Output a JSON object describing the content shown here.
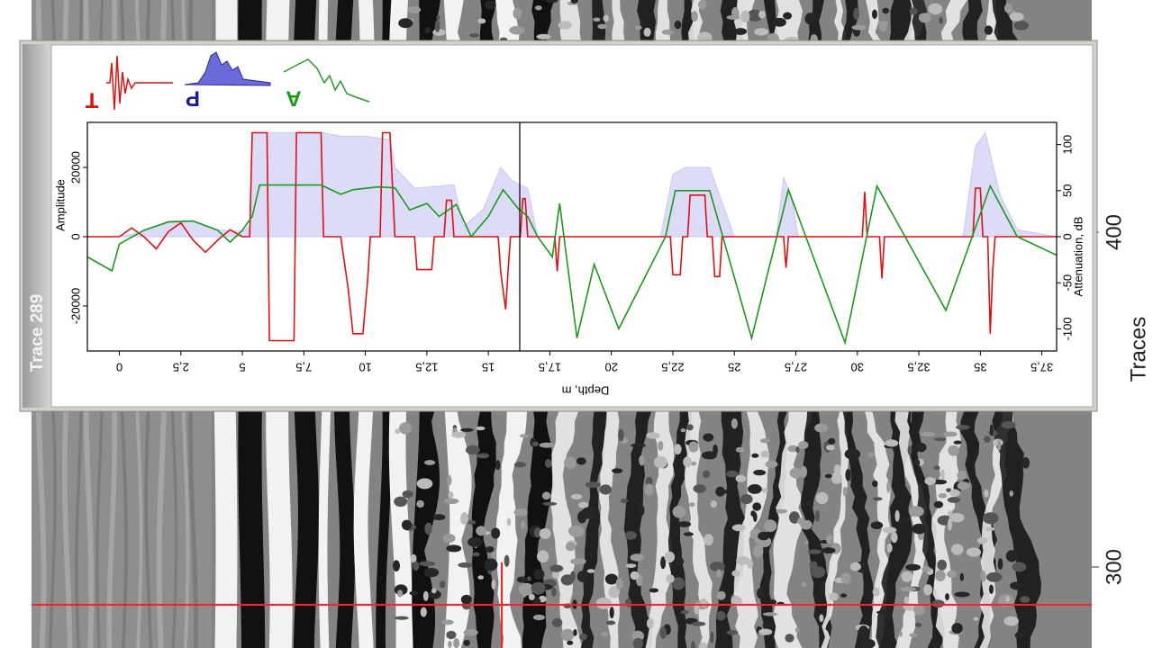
{
  "window": {
    "title": "Trace 289"
  },
  "radargram": {
    "axis_title": "Traces",
    "ticks": [
      300,
      400
    ]
  },
  "chart_data": {
    "type": "line",
    "xlabel": "Depth, m",
    "ylabel": "Amplitude",
    "y2label": "Attenuation, dB",
    "xlim": [
      -1.3,
      38.1
    ],
    "xticks": [
      {
        "value": 0,
        "label": "0"
      },
      {
        "value": 2.5,
        "label": "2,5"
      },
      {
        "value": 5,
        "label": "5"
      },
      {
        "value": 7.5,
        "label": "7,5"
      },
      {
        "value": 10,
        "label": "10"
      },
      {
        "value": 12.5,
        "label": "12,5"
      },
      {
        "value": 15,
        "label": "15"
      },
      {
        "value": 17.5,
        "label": "17,5"
      },
      {
        "value": 20,
        "label": "20"
      },
      {
        "value": 22.5,
        "label": "22,5"
      },
      {
        "value": 25,
        "label": "25"
      },
      {
        "value": 27.5,
        "label": "27,5"
      },
      {
        "value": 30,
        "label": "30"
      },
      {
        "value": 32.5,
        "label": "32,5"
      },
      {
        "value": 35,
        "label": "35"
      },
      {
        "value": 37.5,
        "label": "37,5"
      }
    ],
    "ylim": [
      -33000,
      33000
    ],
    "yticks": [
      -20000,
      0,
      20000
    ],
    "y2lim": [
      -124,
      124
    ],
    "y2ticks": [
      -100,
      -50,
      0,
      50,
      100
    ],
    "series": [
      {
        "name": "P",
        "type": "area",
        "color": "#1a1aa0",
        "fill": "#dcdcf8",
        "x": [
          -1.3,
          0,
          1,
          2,
          3,
          4,
          5,
          5.3,
          5.4,
          8.3,
          9,
          10,
          11,
          11.2,
          12,
          13.6,
          14,
          14.8,
          15.5,
          16,
          16.6,
          17,
          22,
          22.5,
          23,
          24,
          24.6,
          25,
          26.7,
          27,
          27.3,
          27.6,
          34.3,
          34.8,
          35.2,
          35.8,
          36.5,
          38.1
        ],
        "values": [
          0,
          0,
          1500,
          4500,
          4500,
          2000,
          1500,
          3000,
          30000,
          30000,
          29000,
          29000,
          28000,
          20000,
          14000,
          15000,
          3000,
          8000,
          20000,
          16000,
          14000,
          0,
          0,
          18000,
          20000,
          20000,
          8000,
          0,
          0,
          17000,
          12000,
          0,
          0,
          26000,
          30000,
          12000,
          2000,
          0
        ]
      },
      {
        "name": "T",
        "type": "line",
        "color": "#e01010",
        "x": [
          -1.3,
          0,
          0.5,
          1,
          1.5,
          2,
          2.5,
          3,
          3.5,
          4,
          4.5,
          5,
          5.3,
          5.4,
          6.0,
          6.1,
          7.1,
          7.2,
          8.2,
          8.3,
          9.0,
          9.1,
          9.3,
          9.5,
          9.9,
          10.1,
          10.2,
          10.6,
          10.7,
          11.0,
          11.2,
          12.0,
          12.1,
          12.7,
          12.8,
          13.2,
          13.3,
          13.5,
          13.6,
          15.4,
          15.5,
          15.7,
          15.8,
          15.9,
          16.3,
          16.4,
          16.5,
          16.6,
          17.7,
          17.8,
          17.9,
          22.4,
          22.5,
          22.8,
          22.9,
          23.1,
          23.2,
          23.8,
          23.9,
          24.1,
          24.2,
          24.4,
          24.5,
          27.0,
          27.1,
          27.2,
          30.2,
          30.3,
          30.4,
          30.9,
          31.0,
          31.1,
          34.7,
          34.8,
          35.0,
          35.1,
          35.3,
          35.4,
          35.5,
          35.6,
          38.1
        ],
        "values": [
          0,
          0,
          2500,
          0,
          -3500,
          1500,
          4000,
          -1000,
          -4500,
          -1000,
          2000,
          0,
          0,
          30000,
          30000,
          -30000,
          -30000,
          30000,
          30000,
          0,
          0,
          -5000,
          -15000,
          -28000,
          -28000,
          -12000,
          0,
          0,
          30000,
          30000,
          0,
          0,
          -9500,
          -9500,
          0,
          0,
          10500,
          10500,
          0,
          0,
          -10000,
          -21000,
          -10000,
          0,
          0,
          11000,
          11000,
          0,
          0,
          -10000,
          0,
          0,
          -11000,
          -11000,
          0,
          0,
          12000,
          12000,
          0,
          0,
          -11500,
          -11500,
          0,
          0,
          -9000,
          0,
          0,
          13000,
          0,
          0,
          -12000,
          0,
          0,
          14000,
          14000,
          0,
          0,
          -28000,
          -10000,
          0,
          0
        ]
      },
      {
        "name": "A",
        "type": "line",
        "color": "#1a9a1a",
        "axis": "y2",
        "x": [
          -1.3,
          -0.3,
          0,
          1,
          2,
          3,
          4,
          4.5,
          5,
          5.4,
          5.7,
          8.2,
          9,
          9.5,
          10.5,
          11.2,
          11.8,
          12.5,
          13,
          13.7,
          14.3,
          15,
          15.6,
          16.2,
          16.6,
          17,
          17.6,
          17.9,
          18.6,
          19.3,
          20.3,
          22.2,
          22.6,
          24,
          25.7,
          27.2,
          29.5,
          30.8,
          33.6,
          35.4,
          36.5,
          38.1
        ],
        "values": [
          -22,
          -37,
          -8,
          7,
          16,
          17,
          7,
          -6,
          7,
          22,
          56,
          56,
          46,
          51,
          54,
          53,
          29,
          36,
          22,
          35,
          0,
          22,
          51,
          31,
          22,
          0,
          -22,
          36,
          -110,
          -30,
          -100,
          0,
          50,
          50,
          -110,
          51,
          -115,
          55,
          -80,
          55,
          0,
          -20
        ]
      }
    ]
  }
}
